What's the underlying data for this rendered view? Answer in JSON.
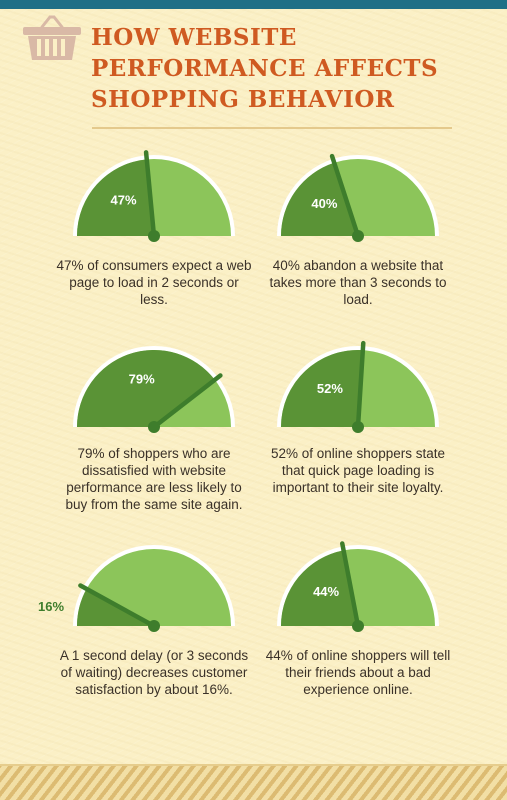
{
  "header": {
    "title_lines": [
      "HOW WEBSITE",
      "PERFORMANCE AFFECTS",
      "SHOPPING BEHAVIOR"
    ],
    "icon": "shopping-basket-icon"
  },
  "colors": {
    "title": "#cf5a21",
    "gauge_dark": "#5a9336",
    "gauge_light": "#8cc55a",
    "needle": "#3e7d2c",
    "caption_text": "#3a3128",
    "top_bar": "#1f6f86"
  },
  "gauges": [
    {
      "percent": 47,
      "label": "47%",
      "caption": "47% of consumers expect a web page to load in 2 seconds or less."
    },
    {
      "percent": 40,
      "label": "40%",
      "caption": "40% abandon a website that takes more than 3 seconds to load."
    },
    {
      "percent": 79,
      "label": "79%",
      "caption": "79% of shoppers who are dissatisfied with website performance are less likely to buy from the same site again."
    },
    {
      "percent": 52,
      "label": "52%",
      "caption": "52% of online shoppers state that quick page loading is important to their site loyalty."
    },
    {
      "percent": 16,
      "label": "16%",
      "caption": "A 1 second delay (or 3 seconds of waiting) decreases customer satisfaction by about 16%."
    },
    {
      "percent": 44,
      "label": "44%",
      "caption": "44% of online shoppers will tell their friends about a bad experience online."
    }
  ]
}
